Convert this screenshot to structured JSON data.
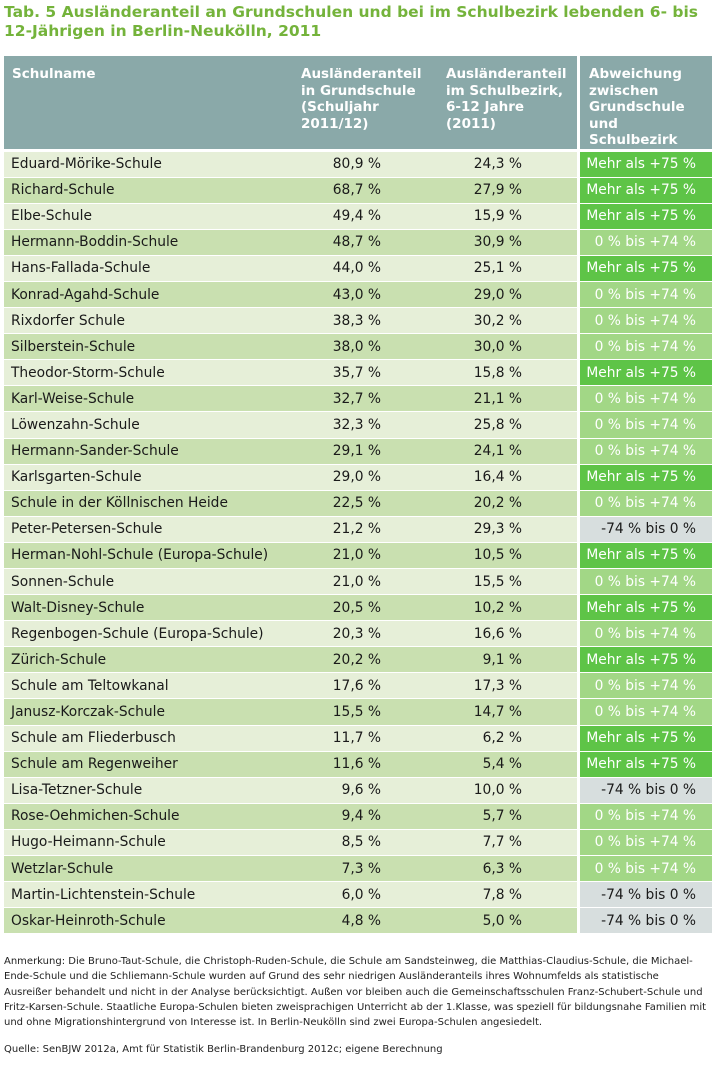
{
  "title": "Tab. 5 Ausländeranteil an Grundschulen und bei im Schulbezirk lebenden 6- bis 12-Jährigen in Berlin-Neukölln, 2011",
  "header": {
    "name": "Schulname",
    "share_school": [
      "Ausländeranteil",
      "in Grundschule",
      "(Schuljahr",
      "2011/12)"
    ],
    "share_district": [
      "Ausländeranteil",
      "im Schulbezirk,",
      "6-12 Jahre",
      "(2011)"
    ],
    "deviation": [
      "Abweichung",
      "zwischen",
      "Grundschule und",
      "Schulbezirk"
    ]
  },
  "categories": {
    "high": "Mehr als +75 %",
    "mid": "0 % bis +74 %",
    "low": "-74 % bis 0 %"
  },
  "category_colors": {
    "high": "#5ec447",
    "mid": "#a2d786",
    "low": "#d7dede",
    "header": "#8aa9a9",
    "title": "#74b33b"
  },
  "rows": [
    {
      "name": "Eduard-Mörike-Schule",
      "school": "80,9 %",
      "district": "24,3 %",
      "cat": "high"
    },
    {
      "name": "Richard-Schule",
      "school": "68,7 %",
      "district": "27,9 %",
      "cat": "high"
    },
    {
      "name": "Elbe-Schule",
      "school": "49,4 %",
      "district": "15,9 %",
      "cat": "high"
    },
    {
      "name": "Hermann-Boddin-Schule",
      "school": "48,7 %",
      "district": "30,9 %",
      "cat": "mid"
    },
    {
      "name": "Hans-Fallada-Schule",
      "school": "44,0 %",
      "district": "25,1 %",
      "cat": "high"
    },
    {
      "name": "Konrad-Agahd-Schule",
      "school": "43,0 %",
      "district": "29,0 %",
      "cat": "mid"
    },
    {
      "name": "Rixdorfer Schule",
      "school": "38,3 %",
      "district": "30,2 %",
      "cat": "mid"
    },
    {
      "name": "Silberstein-Schule",
      "school": "38,0 %",
      "district": "30,0 %",
      "cat": "mid"
    },
    {
      "name": "Theodor-Storm-Schule",
      "school": "35,7 %",
      "district": "15,8 %",
      "cat": "high"
    },
    {
      "name": "Karl-Weise-Schule",
      "school": "32,7 %",
      "district": "21,1 %",
      "cat": "mid"
    },
    {
      "name": "Löwenzahn-Schule",
      "school": "32,3 %",
      "district": "25,8 %",
      "cat": "mid"
    },
    {
      "name": "Hermann-Sander-Schule",
      "school": "29,1 %",
      "district": "24,1 %",
      "cat": "mid"
    },
    {
      "name": "Karlsgarten-Schule",
      "school": "29,0 %",
      "district": "16,4 %",
      "cat": "high"
    },
    {
      "name": "Schule in der Köllnischen Heide",
      "school": "22,5 %",
      "district": "20,2 %",
      "cat": "mid"
    },
    {
      "name": "Peter-Petersen-Schule",
      "school": "21,2 %",
      "district": "29,3 %",
      "cat": "low"
    },
    {
      "name": "Herman-Nohl-Schule (Europa-Schule)",
      "school": "21,0 %",
      "district": "10,5 %",
      "cat": "high"
    },
    {
      "name": "Sonnen-Schule",
      "school": "21,0 %",
      "district": "15,5 %",
      "cat": "mid"
    },
    {
      "name": "Walt-Disney-Schule",
      "school": "20,5 %",
      "district": "10,2 %",
      "cat": "high"
    },
    {
      "name": "Regenbogen-Schule (Europa-Schule)",
      "school": "20,3 %",
      "district": "16,6 %",
      "cat": "mid"
    },
    {
      "name": "Zürich-Schule",
      "school": "20,2 %",
      "district": "9,1 %",
      "cat": "high"
    },
    {
      "name": "Schule am Teltowkanal",
      "school": "17,6 %",
      "district": "17,3 %",
      "cat": "mid"
    },
    {
      "name": "Janusz-Korczak-Schule",
      "school": "15,5 %",
      "district": "14,7 %",
      "cat": "mid"
    },
    {
      "name": "Schule am Fliederbusch",
      "school": "11,7 %",
      "district": "6,2 %",
      "cat": "high"
    },
    {
      "name": "Schule am Regenweiher",
      "school": "11,6 %",
      "district": "5,4 %",
      "cat": "high"
    },
    {
      "name": "Lisa-Tetzner-Schule",
      "school": "9,6 %",
      "district": "10,0 %",
      "cat": "low"
    },
    {
      "name": "Rose-Oehmichen-Schule",
      "school": "9,4 %",
      "district": "5,7 %",
      "cat": "mid"
    },
    {
      "name": "Hugo-Heimann-Schule",
      "school": "8,5 %",
      "district": "7,7 %",
      "cat": "mid"
    },
    {
      "name": "Wetzlar-Schule",
      "school": "7,3 %",
      "district": "6,3 %",
      "cat": "mid"
    },
    {
      "name": "Martin-Lichtenstein-Schule",
      "school": "6,0 %",
      "district": "7,8 %",
      "cat": "low"
    },
    {
      "name": "Oskar-Heinroth-Schule",
      "school": "4,8 %",
      "district": "5,0 %",
      "cat": "low"
    }
  ],
  "note": "Anmerkung: Die Bruno-Taut-Schule, die Christoph-Ruden-Schule, die Schule am Sandsteinweg, die Matthias-Claudius-Schule, die Michael-Ende-Schule und die Schliemann-Schule wurden auf Grund des sehr niedrigen Ausländeranteils ihres Wohnumfelds als statistische Ausreißer behandelt und nicht in der Analyse berücksichtigt. Außen vor bleiben auch die Gemeinschaftsschulen Franz-Schubert-Schule und Fritz-Karsen-Schule. Staatliche Europa-Schulen bieten zweisprachigen Unterricht ab der 1.Klasse, was speziell für bildungsnahe Familien mit und ohne Migrationshintergrund von Interesse ist. In Berlin-Neukölln sind zwei Europa-Schulen angesiedelt.",
  "source": "Quelle: SenBJW 2012a, Amt für Statistik Berlin-Brandenburg 2012c; eigene Berechnung"
}
